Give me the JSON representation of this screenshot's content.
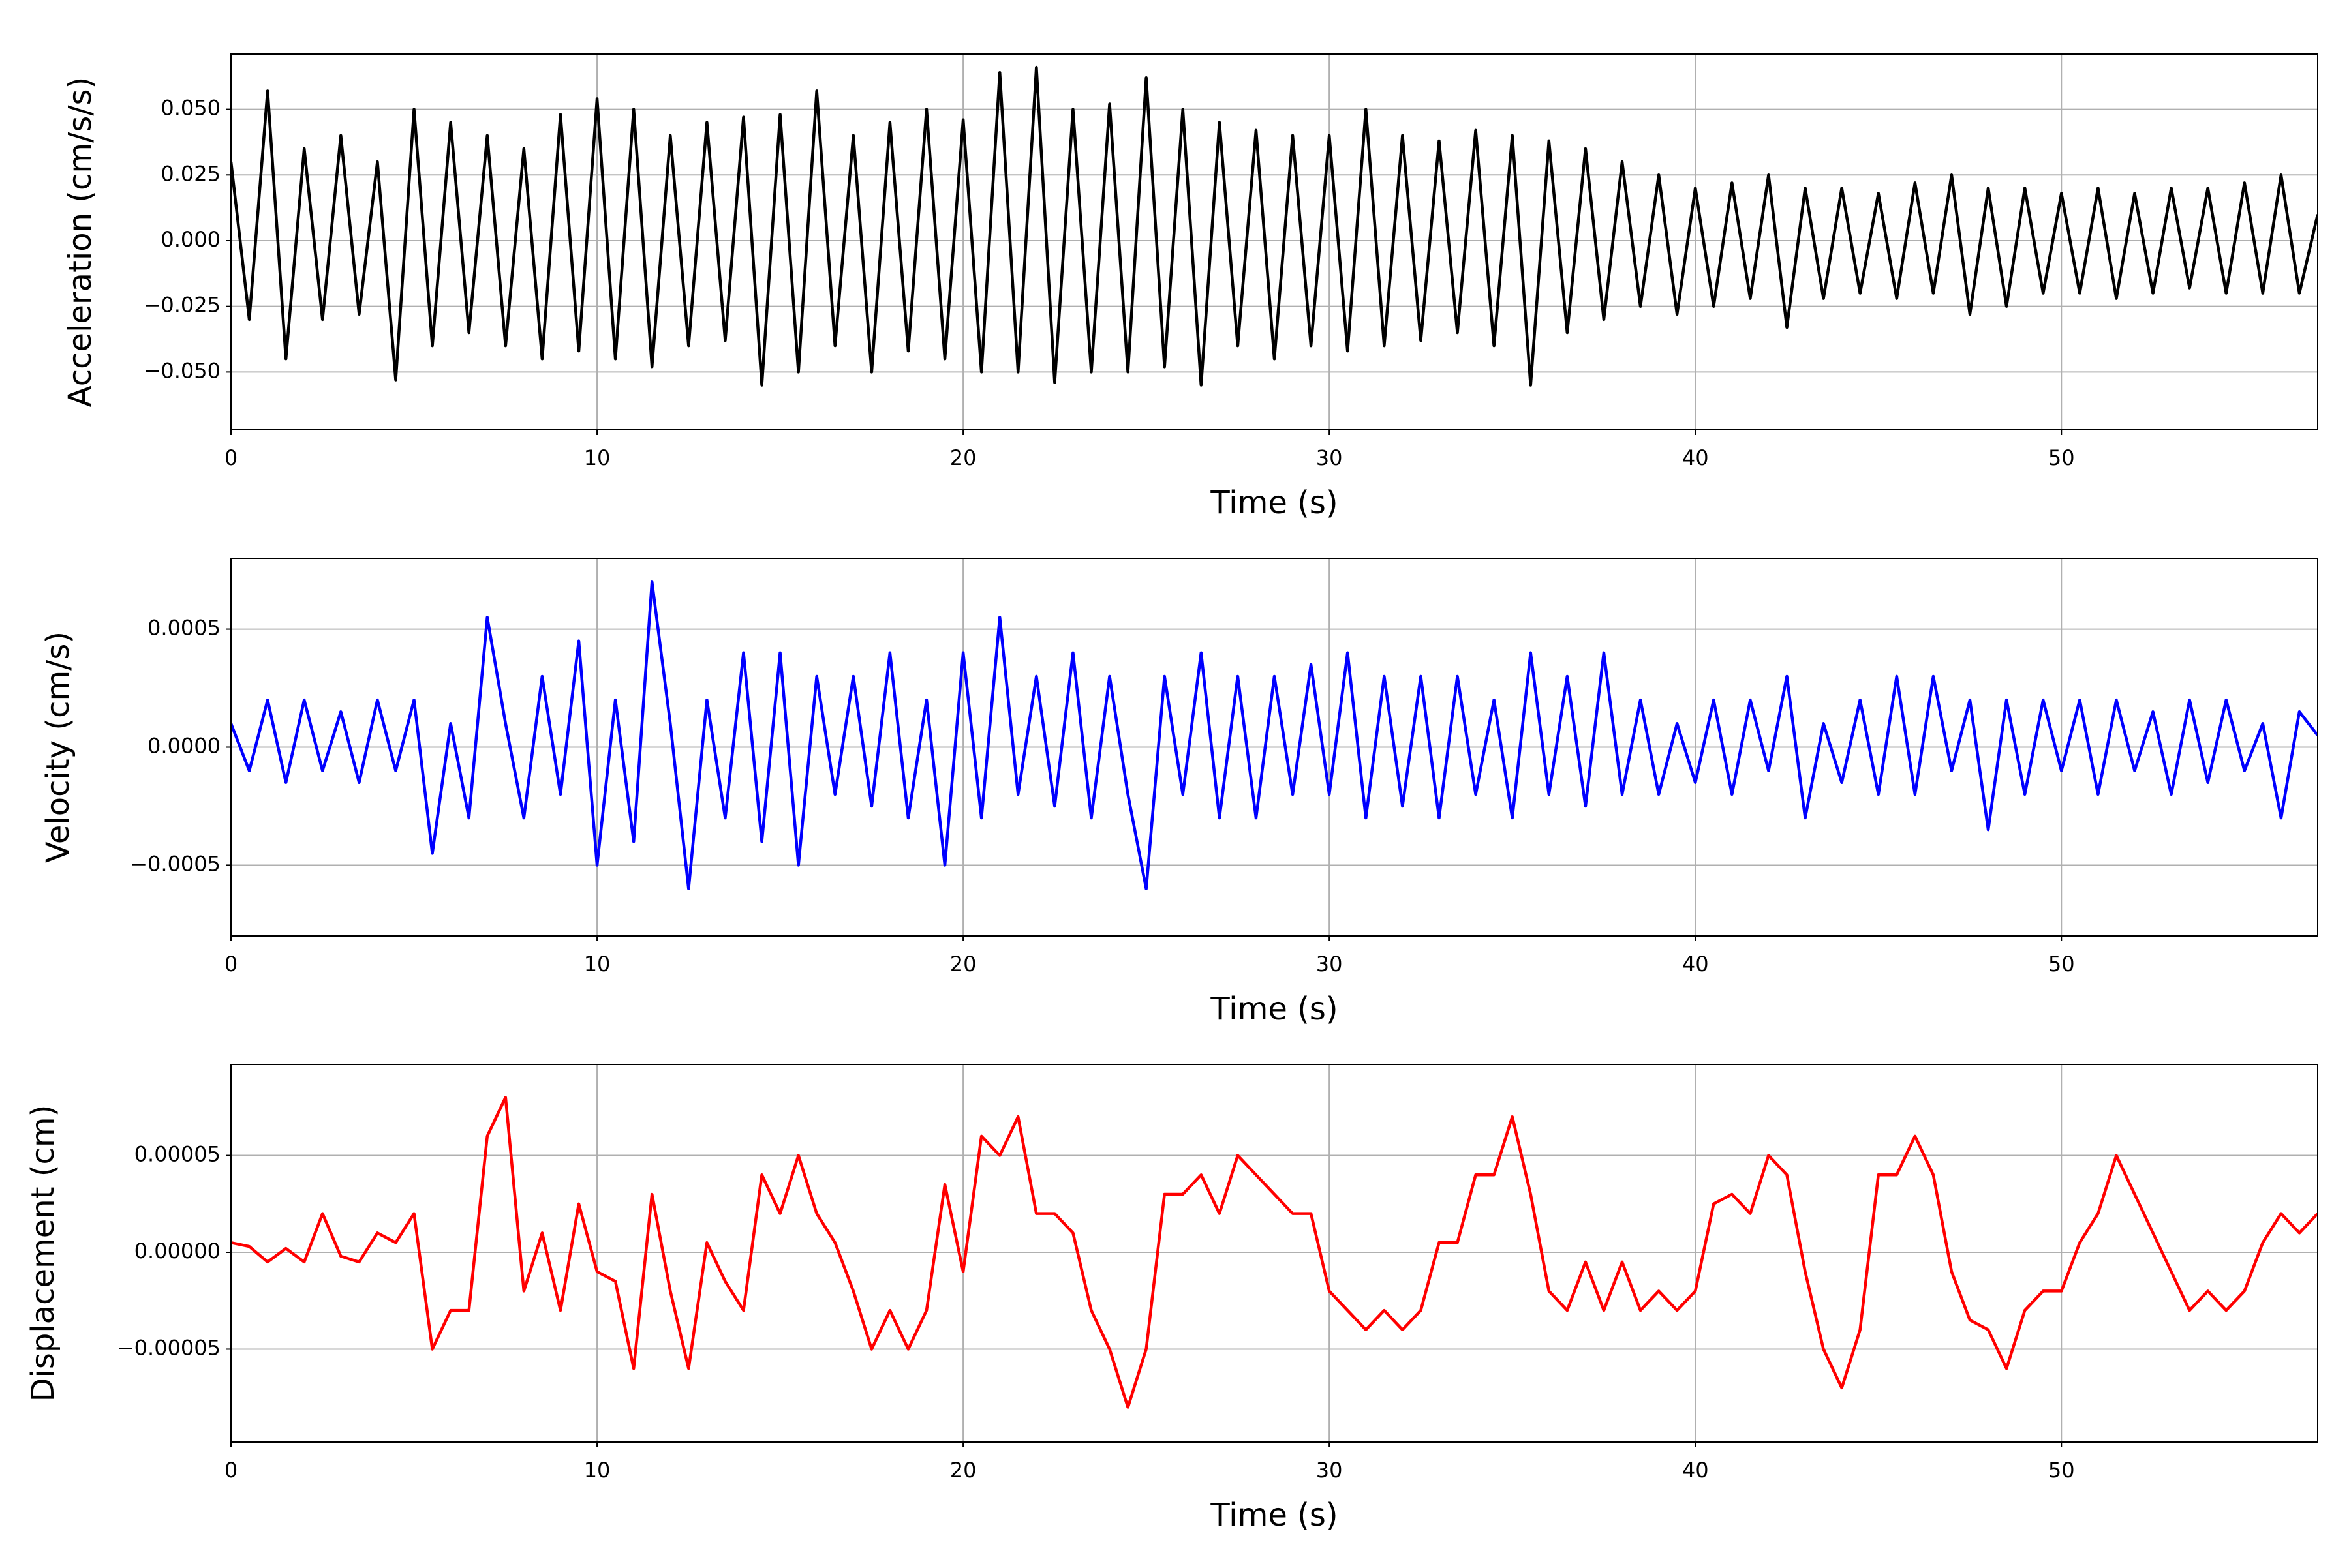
{
  "chart_data": [
    {
      "type": "line",
      "ylabel": "Acceleration (cm/s/s)",
      "xlabel": "Time (s)",
      "color": "#000000",
      "grid": true,
      "xlim": [
        0,
        57
      ],
      "xticks": [
        0,
        10,
        20,
        30,
        40,
        50
      ],
      "ylim": [
        -0.072,
        0.071
      ],
      "yticks": [
        {
          "value": -0.05,
          "label": "−0.050"
        },
        {
          "value": -0.025,
          "label": "−0.025"
        },
        {
          "value": 0,
          "label": "0.000"
        },
        {
          "value": 0.025,
          "label": "0.025"
        },
        {
          "value": 0.05,
          "label": "0.050"
        }
      ],
      "x": [
        0,
        0.5,
        1,
        1.5,
        2,
        2.5,
        3,
        3.5,
        4,
        4.5,
        5,
        5.5,
        6,
        6.5,
        7,
        7.5,
        8,
        8.5,
        9,
        9.5,
        10,
        10.5,
        11,
        11.5,
        12,
        12.5,
        13,
        13.5,
        14,
        14.5,
        15,
        15.5,
        16,
        16.5,
        17,
        17.5,
        18,
        18.5,
        19,
        19.5,
        20,
        20.5,
        21,
        21.5,
        22,
        22.5,
        23,
        23.5,
        24,
        24.5,
        25,
        25.5,
        26,
        26.5,
        27,
        27.5,
        28,
        28.5,
        29,
        29.5,
        30,
        30.5,
        31,
        31.5,
        32,
        32.5,
        33,
        33.5,
        34,
        34.5,
        35,
        35.5,
        36,
        36.5,
        37,
        37.5,
        38,
        38.5,
        39,
        39.5,
        40,
        40.5,
        41,
        41.5,
        42,
        42.5,
        43,
        43.5,
        44,
        44.5,
        45,
        45.5,
        46,
        46.5,
        47,
        47.5,
        48,
        48.5,
        49,
        49.5,
        50,
        50.5,
        51,
        51.5,
        52,
        52.5,
        53,
        53.5,
        54,
        54.5,
        55,
        55.5,
        56,
        56.5,
        57
      ],
      "values": [
        0.03,
        -0.03,
        0.057,
        -0.045,
        0.035,
        -0.03,
        0.04,
        -0.028,
        0.03,
        -0.053,
        0.05,
        -0.04,
        0.045,
        -0.035,
        0.04,
        -0.04,
        0.035,
        -0.045,
        0.048,
        -0.042,
        0.054,
        -0.045,
        0.05,
        -0.048,
        0.04,
        -0.04,
        0.045,
        -0.038,
        0.047,
        -0.055,
        0.048,
        -0.05,
        0.057,
        -0.04,
        0.04,
        -0.05,
        0.045,
        -0.042,
        0.05,
        -0.045,
        0.046,
        -0.05,
        0.064,
        -0.05,
        0.066,
        -0.054,
        0.05,
        -0.05,
        0.052,
        -0.05,
        0.062,
        -0.048,
        0.05,
        -0.055,
        0.045,
        -0.04,
        0.042,
        -0.045,
        0.04,
        -0.04,
        0.04,
        -0.042,
        0.05,
        -0.04,
        0.04,
        -0.038,
        0.038,
        -0.035,
        0.042,
        -0.04,
        0.04,
        -0.055,
        0.038,
        -0.035,
        0.035,
        -0.03,
        0.03,
        -0.025,
        0.025,
        -0.028,
        0.02,
        -0.025,
        0.022,
        -0.022,
        0.025,
        -0.033,
        0.02,
        -0.022,
        0.02,
        -0.02,
        0.018,
        -0.022,
        0.022,
        -0.02,
        0.025,
        -0.028,
        0.02,
        -0.025,
        0.02,
        -0.02,
        0.018,
        -0.02,
        0.02,
        -0.022,
        0.018,
        -0.02,
        0.02,
        -0.018,
        0.02,
        -0.02,
        0.022,
        -0.02,
        0.025,
        -0.02,
        0.01
      ]
    },
    {
      "type": "line",
      "ylabel": "Velocity (cm/s)",
      "xlabel": "Time (s)",
      "color": "#0000ff",
      "grid": true,
      "xlim": [
        0,
        57
      ],
      "xticks": [
        0,
        10,
        20,
        30,
        40,
        50
      ],
      "ylim": [
        -0.0008,
        0.0008
      ],
      "yticks": [
        {
          "value": -0.0005,
          "label": "−0.0005"
        },
        {
          "value": 0,
          "label": "0.0000"
        },
        0.0005
      ],
      "x": [
        0,
        0.5,
        1,
        1.5,
        2,
        2.5,
        3,
        3.5,
        4,
        4.5,
        5,
        5.5,
        6,
        6.5,
        7,
        7.5,
        8,
        8.5,
        9,
        9.5,
        10,
        10.5,
        11,
        11.5,
        12,
        12.5,
        13,
        13.5,
        14,
        14.5,
        15,
        15.5,
        16,
        16.5,
        17,
        17.5,
        18,
        18.5,
        19,
        19.5,
        20,
        20.5,
        21,
        21.5,
        22,
        22.5,
        23,
        23.5,
        24,
        24.5,
        25,
        25.5,
        26,
        26.5,
        27,
        27.5,
        28,
        28.5,
        29,
        29.5,
        30,
        30.5,
        31,
        31.5,
        32,
        32.5,
        33,
        33.5,
        34,
        34.5,
        35,
        35.5,
        36,
        36.5,
        37,
        37.5,
        38,
        38.5,
        39,
        39.5,
        40,
        40.5,
        41,
        41.5,
        42,
        42.5,
        43,
        43.5,
        44,
        44.5,
        45,
        45.5,
        46,
        46.5,
        47,
        47.5,
        48,
        48.5,
        49,
        49.5,
        50,
        50.5,
        51,
        51.5,
        52,
        52.5,
        53,
        53.5,
        54,
        54.5,
        55,
        55.5,
        56,
        56.5,
        57
      ],
      "values": [
        0.0001,
        -0.0001,
        0.0002,
        -0.00015,
        0.0002,
        -0.0001,
        0.00015,
        -0.00015,
        0.0002,
        -0.0001,
        0.0002,
        -0.00045,
        0.0001,
        -0.0003,
        0.00055,
        0.0001,
        -0.0003,
        0.0003,
        -0.0002,
        0.00045,
        -0.0005,
        0.0002,
        -0.0004,
        0.0007,
        0.0001,
        -0.0006,
        0.0002,
        -0.0003,
        0.0004,
        -0.0004,
        0.0004,
        -0.0005,
        0.0003,
        -0.0002,
        0.0003,
        -0.00025,
        0.0004,
        -0.0003,
        0.0002,
        -0.0005,
        0.0004,
        -0.0003,
        0.00055,
        -0.0002,
        0.0003,
        -0.00025,
        0.0004,
        -0.0003,
        0.0003,
        -0.0002,
        -0.0006,
        0.0003,
        -0.0002,
        0.0004,
        -0.0003,
        0.0003,
        -0.0003,
        0.0003,
        -0.0002,
        0.00035,
        -0.0002,
        0.0004,
        -0.0003,
        0.0003,
        -0.00025,
        0.0003,
        -0.0003,
        0.0003,
        -0.0002,
        0.0002,
        -0.0003,
        0.0004,
        -0.0002,
        0.0003,
        -0.00025,
        0.0004,
        -0.0002,
        0.0002,
        -0.0002,
        0.0001,
        -0.00015,
        0.0002,
        -0.0002,
        0.0002,
        -0.0001,
        0.0003,
        -0.0003,
        0.0001,
        -0.00015,
        0.0002,
        -0.0002,
        0.0003,
        -0.0002,
        0.0003,
        -0.0001,
        0.0002,
        -0.00035,
        0.0002,
        -0.0002,
        0.0002,
        -0.0001,
        0.0002,
        -0.0002,
        0.0002,
        -0.0001,
        0.00015,
        -0.0002,
        0.0002,
        -0.00015,
        0.0002,
        -0.0001,
        0.0001,
        -0.0003,
        0.00015,
        5e-05
      ]
    },
    {
      "type": "line",
      "ylabel": "Displacement (cm)",
      "xlabel": "Time (s)",
      "color": "#ff0000",
      "grid": true,
      "xlim": [
        0,
        57
      ],
      "xticks": [
        0,
        10,
        20,
        30,
        40,
        50
      ],
      "ylim": [
        -9.8e-05,
        9.7e-05
      ],
      "yticks": [
        {
          "value": -5e-05,
          "label": "−0.00005"
        },
        {
          "value": 0,
          "label": "0.00000"
        },
        {
          "value": 5e-05,
          "label": "0.00005"
        }
      ],
      "x": [
        0,
        0.5,
        1,
        1.5,
        2,
        2.5,
        3,
        3.5,
        4,
        4.5,
        5,
        5.5,
        6,
        6.5,
        7,
        7.5,
        8,
        8.5,
        9,
        9.5,
        10,
        10.5,
        11,
        11.5,
        12,
        12.5,
        13,
        13.5,
        14,
        14.5,
        15,
        15.5,
        16,
        16.5,
        17,
        17.5,
        18,
        18.5,
        19,
        19.5,
        20,
        20.5,
        21,
        21.5,
        22,
        22.5,
        23,
        23.5,
        24,
        24.5,
        25,
        25.5,
        26,
        26.5,
        27,
        27.5,
        28,
        28.5,
        29,
        29.5,
        30,
        30.5,
        31,
        31.5,
        32,
        32.5,
        33,
        33.5,
        34,
        34.5,
        35,
        35.5,
        36,
        36.5,
        37,
        37.5,
        38,
        38.5,
        39,
        39.5,
        40,
        40.5,
        41,
        41.5,
        42,
        42.5,
        43,
        43.5,
        44,
        44.5,
        45,
        45.5,
        46,
        46.5,
        47,
        47.5,
        48,
        48.5,
        49,
        49.5,
        50,
        50.5,
        51,
        51.5,
        52,
        52.5,
        53,
        53.5,
        54,
        54.5,
        55,
        55.5,
        56,
        56.5,
        57
      ],
      "values": [
        5e-06,
        3e-06,
        -5e-06,
        2e-06,
        -5e-06,
        2e-05,
        -2e-06,
        -5e-06,
        1e-05,
        5e-06,
        2e-05,
        -5e-05,
        -3e-05,
        -3e-05,
        6e-05,
        8e-05,
        -2e-05,
        1e-05,
        -3e-05,
        2.5e-05,
        -1e-05,
        -1.5e-05,
        -6e-05,
        3e-05,
        -2e-05,
        -6e-05,
        5e-06,
        -1.5e-05,
        -3e-05,
        4e-05,
        2e-05,
        5e-05,
        2e-05,
        5e-06,
        -2e-05,
        -5e-05,
        -3e-05,
        -5e-05,
        -3e-05,
        3.5e-05,
        -1e-05,
        6e-05,
        5e-05,
        7e-05,
        2e-05,
        2e-05,
        1e-05,
        -3e-05,
        -5e-05,
        -8e-05,
        -5e-05,
        3e-05,
        3e-05,
        4e-05,
        2e-05,
        5e-05,
        4e-05,
        3e-05,
        2e-05,
        2e-05,
        -2e-05,
        -3e-05,
        -4e-05,
        -3e-05,
        -4e-05,
        -3e-05,
        5e-06,
        5e-06,
        4e-05,
        4e-05,
        7e-05,
        3e-05,
        -2e-05,
        -3e-05,
        -5e-06,
        -3e-05,
        -5e-06,
        -3e-05,
        -2e-05,
        -3e-05,
        -2e-05,
        2.5e-05,
        3e-05,
        2e-05,
        5e-05,
        4e-05,
        -1e-05,
        -5e-05,
        -7e-05,
        -4e-05,
        4e-05,
        4e-05,
        6e-05,
        4e-05,
        -1e-05,
        -3.5e-05,
        -4e-05,
        -6e-05,
        -3e-05,
        -2e-05,
        -2e-05,
        5e-06,
        2e-05,
        5e-05,
        3e-05,
        1e-05,
        -1e-05,
        -3e-05,
        -2e-05,
        -3e-05,
        -2e-05,
        5e-06,
        2e-05,
        1e-05,
        2e-05
      ]
    }
  ]
}
